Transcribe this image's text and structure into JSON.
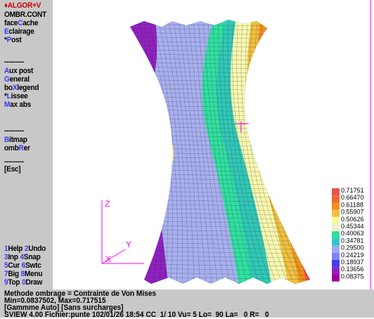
{
  "menu": {
    "title": "♦ALGOR+V",
    "items_top": [
      {
        "pre": "",
        "hot": "",
        "post": "OMBR.CONT"
      },
      {
        "pre": "face",
        "hot": "C",
        "post": "ache"
      },
      {
        "pre": "",
        "hot": "E",
        "post": "clairage"
      },
      {
        "pre": "*",
        "hot": "P",
        "post": "ost"
      }
    ],
    "sep1": "---------",
    "items_mid": [
      {
        "pre": "",
        "hot": "A",
        "post": "ux post"
      },
      {
        "pre": "",
        "hot": "G",
        "post": "eneral"
      },
      {
        "pre": "bo",
        "hot": "X",
        "post": "legend"
      },
      {
        "pre": "*",
        "hot": "L",
        "post": "issee"
      },
      {
        "pre": "",
        "hot": "M",
        "post": "ax abs"
      }
    ],
    "sep2": "---------",
    "items_low": [
      {
        "pre": "",
        "hot": "B",
        "post": "itmap"
      },
      {
        "pre": "omb",
        "hot": "R",
        "post": "er"
      }
    ],
    "sep3": "---------",
    "esc": "[Esc]",
    "fkeys": [
      {
        "n1": "1",
        "l1": "Help",
        "n2": "2",
        "l2": "Undo"
      },
      {
        "n1": "3",
        "l1": "Inp",
        "n2": "4",
        "l2": "Snap"
      },
      {
        "n1": "5",
        "l1": "Cur",
        "n2": "6",
        "l2": "Swtc"
      },
      {
        "n1": "7",
        "l1": "Big",
        "n2": "8",
        "l2": "Menu"
      },
      {
        "n1": "9",
        "l1": "Top",
        "n2": "0",
        "l2": "Draw"
      }
    ]
  },
  "status": {
    "line1": "Methode ombrage = Contrainte de Von Mises",
    "line2": "Min=0.0837502, Max=0.717515",
    "line3": "[Gammme Auto] [Sans surcharges]",
    "line4": "SVIEW 4.00 Fichier:punte 102/01/26 18:54 CC  1/ 10 Vu= 5 Lo=  90 La=   0 R=   0"
  },
  "axes": {
    "z": "Z",
    "x": "X",
    "y": "Y"
  },
  "legend": {
    "values": [
      "0.71751",
      "0.66470",
      "0.61188",
      "0.55907",
      "0.50626",
      "0.45344",
      "0.40063",
      "0.34781",
      "0.29500",
      "0.24219",
      "0.18937",
      "0.13656",
      "0.08375"
    ],
    "colors": [
      "#f05050",
      "#f06838",
      "#f09020",
      "#f0c040",
      "#f8f8a0",
      "#f0f0c8",
      "#30e0a0",
      "#30c8c8",
      "#a0a8f0",
      "#8080ff",
      "#4040f0",
      "#9020c0",
      "#a000a0"
    ]
  },
  "colors": {
    "menu_bg": "#c8c8c8",
    "hotkey": "#3838ff",
    "title": "#d00000",
    "axis": "#ff00ff",
    "frame": "#ff00ff"
  }
}
